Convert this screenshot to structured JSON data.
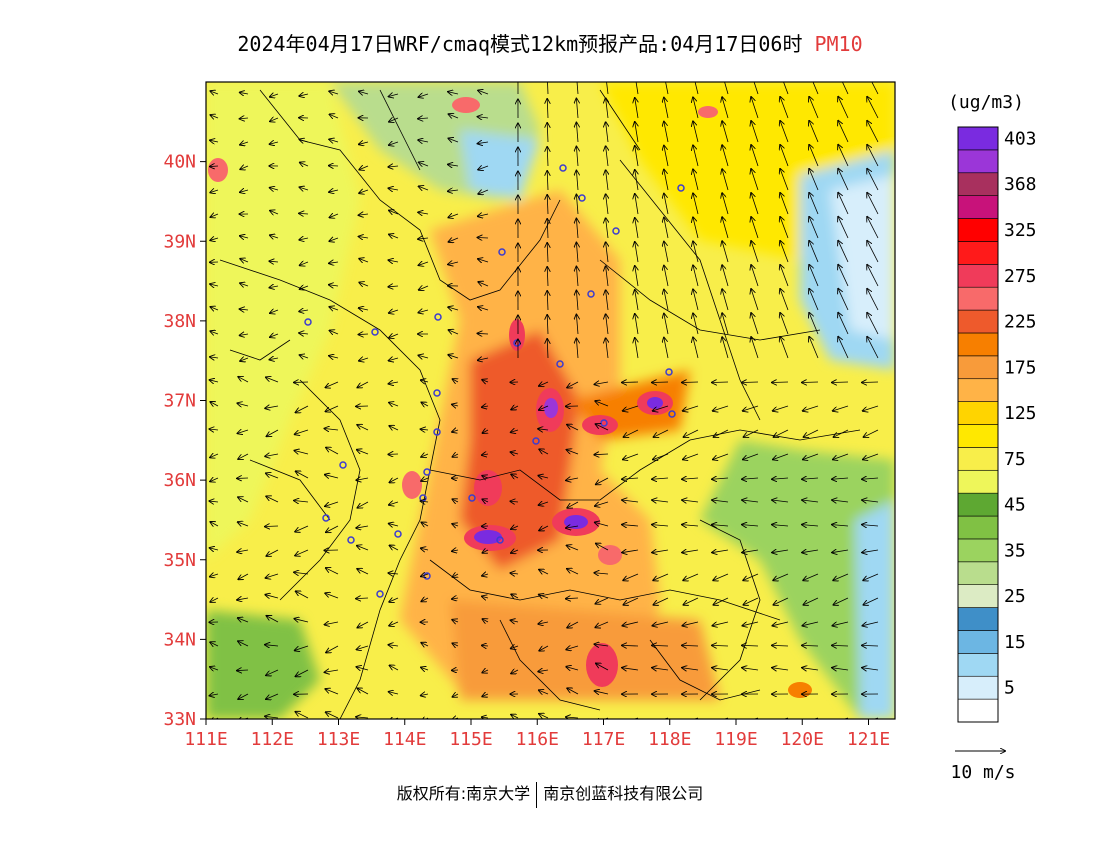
{
  "header": {
    "title": "2024年04月17日WRF/cmaq模式12km预报产品:04月17日06时",
    "variable": "PM10"
  },
  "map": {
    "lon_range": [
      111,
      121.4
    ],
    "lat_range": [
      33,
      41
    ],
    "lon_ticks": [
      "111E",
      "112E",
      "113E",
      "114E",
      "115E",
      "116E",
      "117E",
      "118E",
      "119E",
      "120E",
      "121E"
    ],
    "lat_ticks": [
      "33N",
      "34N",
      "35N",
      "36N",
      "37N",
      "38N",
      "39N",
      "40N"
    ],
    "tick_color": "#e23b3b"
  },
  "legend": {
    "unit": "(ug/m3)",
    "levels": [
      {
        "label": "",
        "color": "#ffffff"
      },
      {
        "label": "5",
        "color": "#d7eefb"
      },
      {
        "label": "",
        "color": "#9fd8f3"
      },
      {
        "label": "15",
        "color": "#6cb6e3"
      },
      {
        "label": "",
        "color": "#3f8fc8"
      },
      {
        "label": "25",
        "color": "#dcebc4"
      },
      {
        "label": "",
        "color": "#b9dd8d"
      },
      {
        "label": "35",
        "color": "#9bd35f"
      },
      {
        "label": "",
        "color": "#80c144"
      },
      {
        "label": "45",
        "color": "#5ea832"
      },
      {
        "label": "",
        "color": "#eef65a"
      },
      {
        "label": "75",
        "color": "#f8ee4a"
      },
      {
        "label": "",
        "color": "#ffe800"
      },
      {
        "label": "125",
        "color": "#ffd400"
      },
      {
        "label": "",
        "color": "#ffb347"
      },
      {
        "label": "175",
        "color": "#f89b3a"
      },
      {
        "label": "",
        "color": "#f77f00"
      },
      {
        "label": "225",
        "color": "#ee5a2c"
      },
      {
        "label": "",
        "color": "#f86a6a"
      },
      {
        "label": "275",
        "color": "#f03b5a"
      },
      {
        "label": "",
        "color": "#ff1a1a"
      },
      {
        "label": "325",
        "color": "#ff0000"
      },
      {
        "label": "",
        "color": "#c8127a"
      },
      {
        "label": "368",
        "color": "#a8305e"
      },
      {
        "label": "",
        "color": "#9b36d8"
      },
      {
        "label": "403",
        "color": "#7a2be0"
      }
    ],
    "wind_scale_label": "10  m/s"
  },
  "footer": {
    "copyright": "版权所有:南京大学",
    "company": "南京创蓝科技有限公司"
  }
}
